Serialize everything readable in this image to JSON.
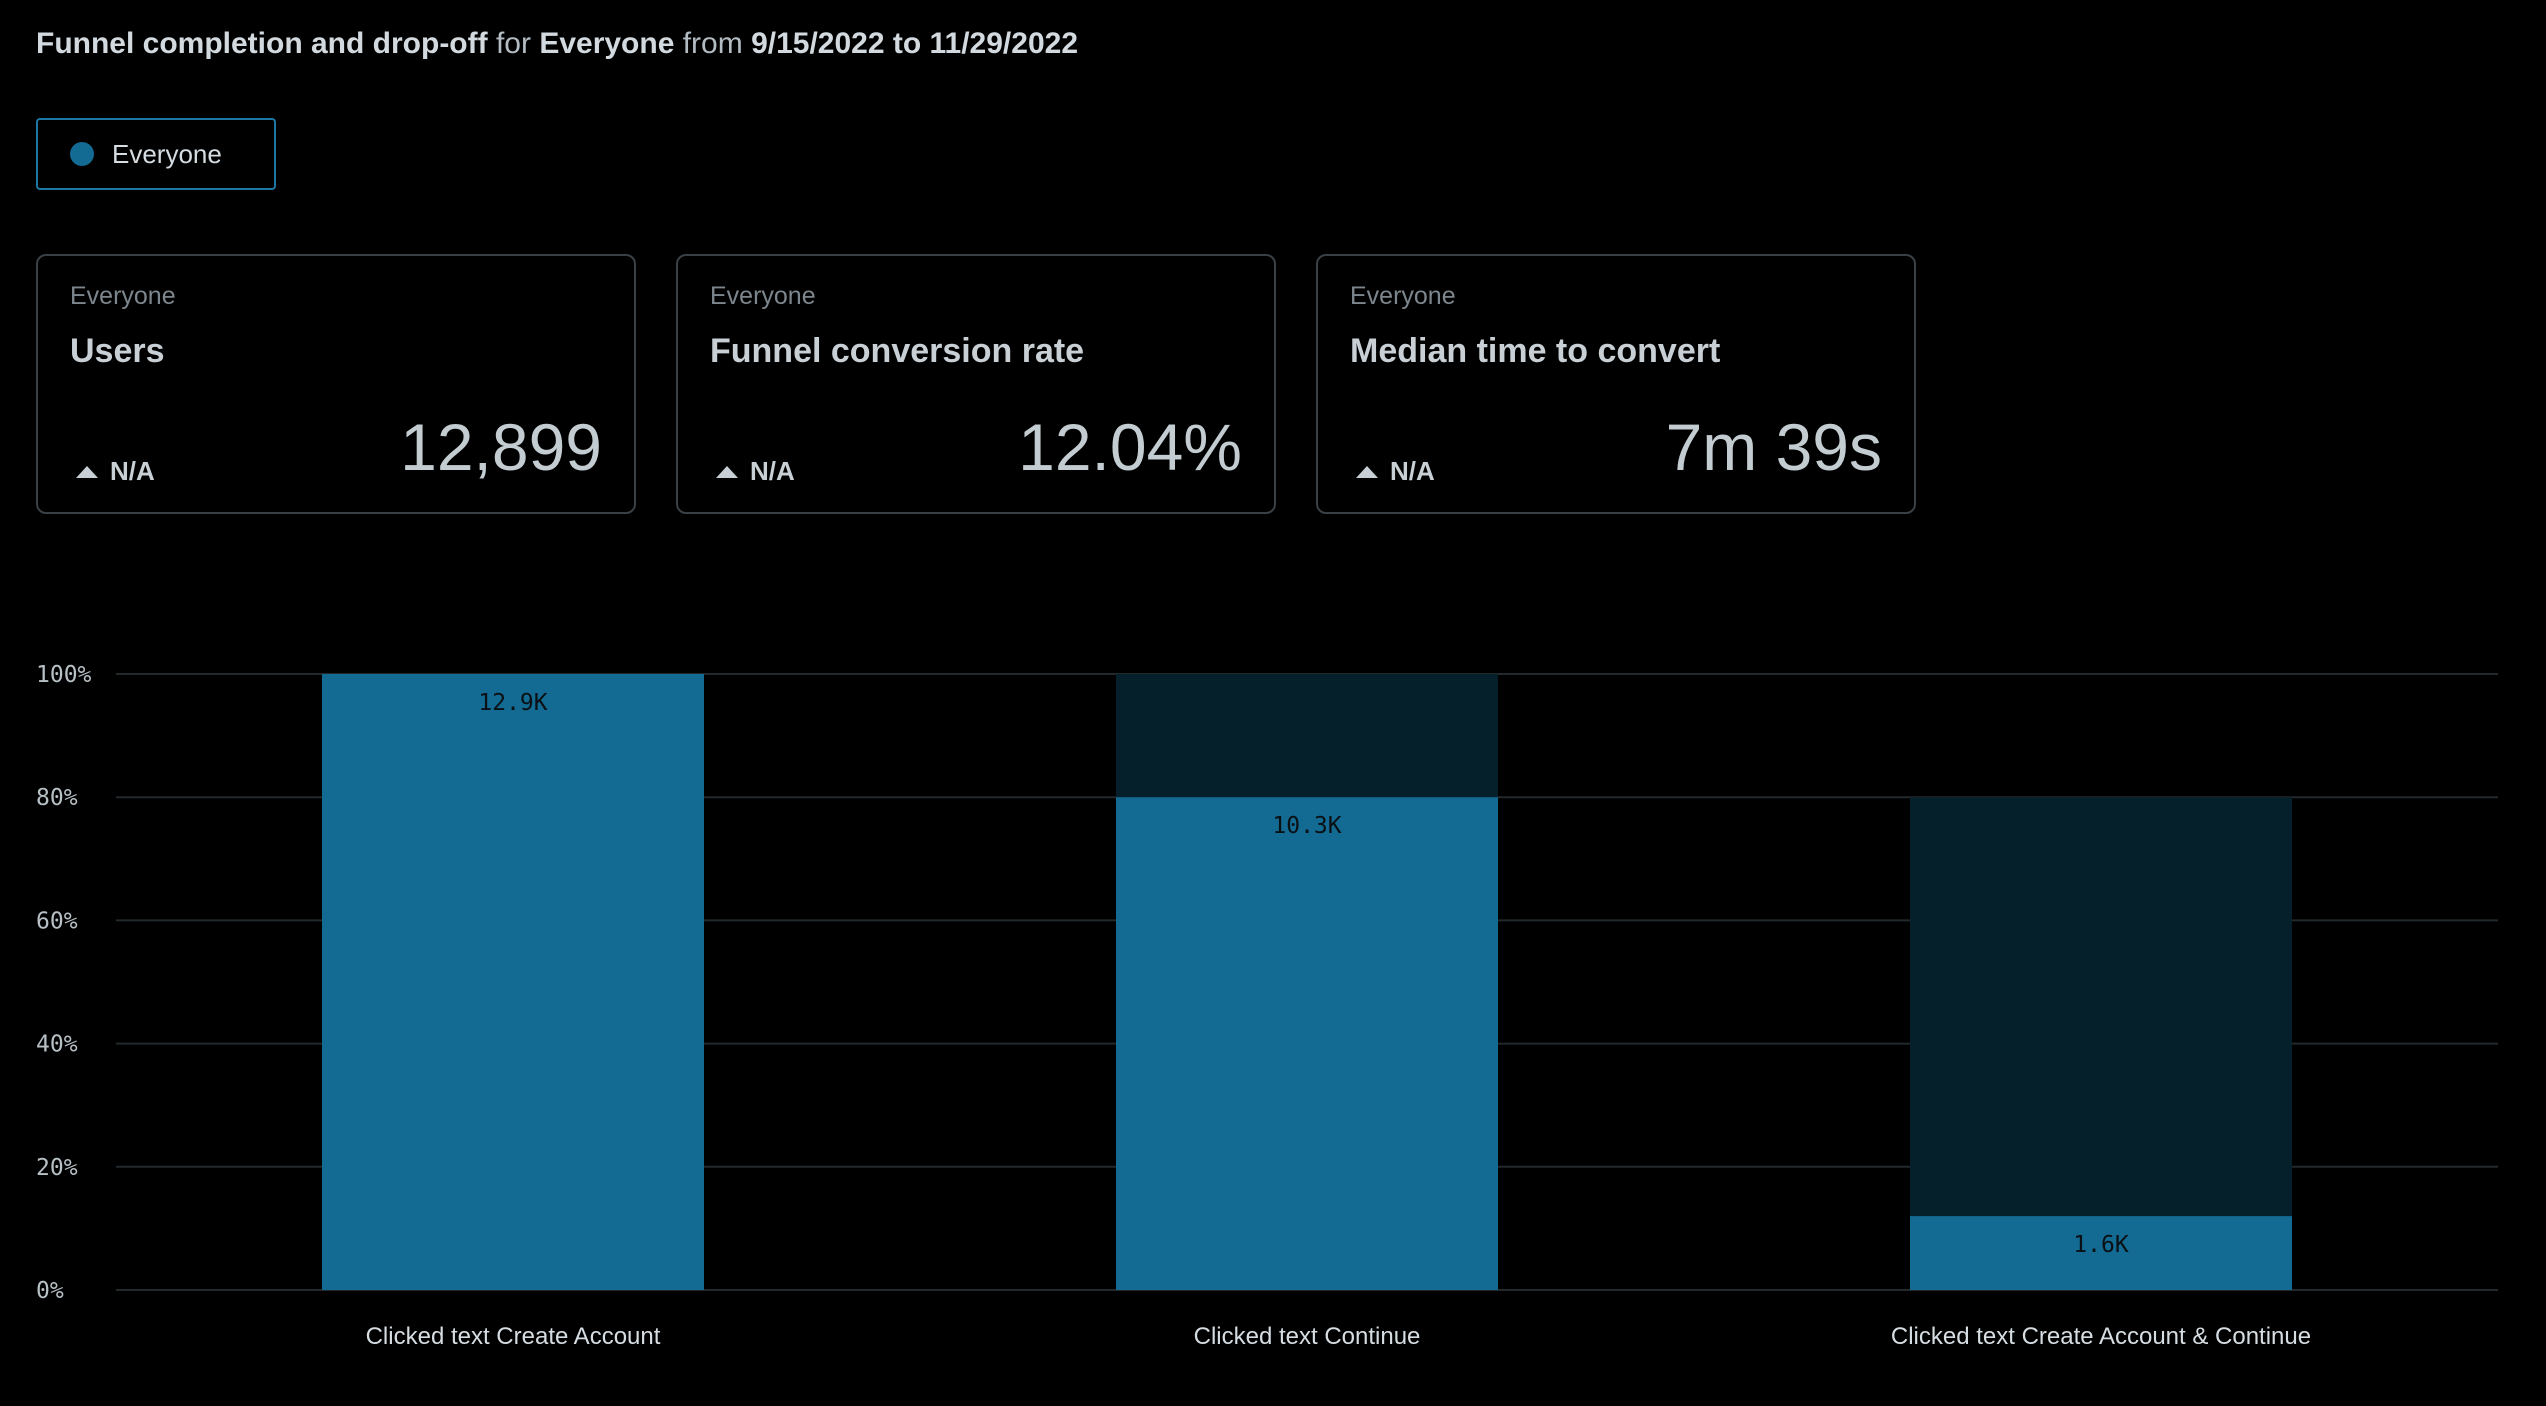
{
  "header": {
    "part1": "Funnel completion and drop-off",
    "part2": " for ",
    "part3": "Everyone",
    "part4": " from ",
    "part5": "9/15/2022 to 11/29/2022"
  },
  "legend": {
    "label": "Everyone",
    "color": "#136a92"
  },
  "kpis": [
    {
      "group": "Everyone",
      "metric": "Users",
      "delta": "N/A",
      "value": "12,899"
    },
    {
      "group": "Everyone",
      "metric": "Funnel conversion rate",
      "delta": "N/A",
      "value": "12.04%"
    },
    {
      "group": "Everyone",
      "metric": "Median time to convert",
      "delta": "N/A",
      "value": "7m 39s"
    }
  ],
  "chart_data": {
    "type": "bar",
    "categories": [
      "Clicked text Create Account",
      "Clicked text Continue",
      "Clicked text Create Account & Continue"
    ],
    "series": [
      {
        "values": [
          100,
          80,
          12
        ],
        "labels": [
          "12.9K",
          "10.3K",
          "1.6K"
        ],
        "color": "#136a92"
      },
      {
        "values": [
          0,
          20,
          68
        ],
        "color": "#06202b"
      }
    ],
    "ylim": [
      0,
      100
    ],
    "yticks": [
      "0%",
      "20%",
      "40%",
      "60%",
      "80%",
      "100%"
    ],
    "xlabel": "",
    "ylabel": "",
    "grid": true
  }
}
